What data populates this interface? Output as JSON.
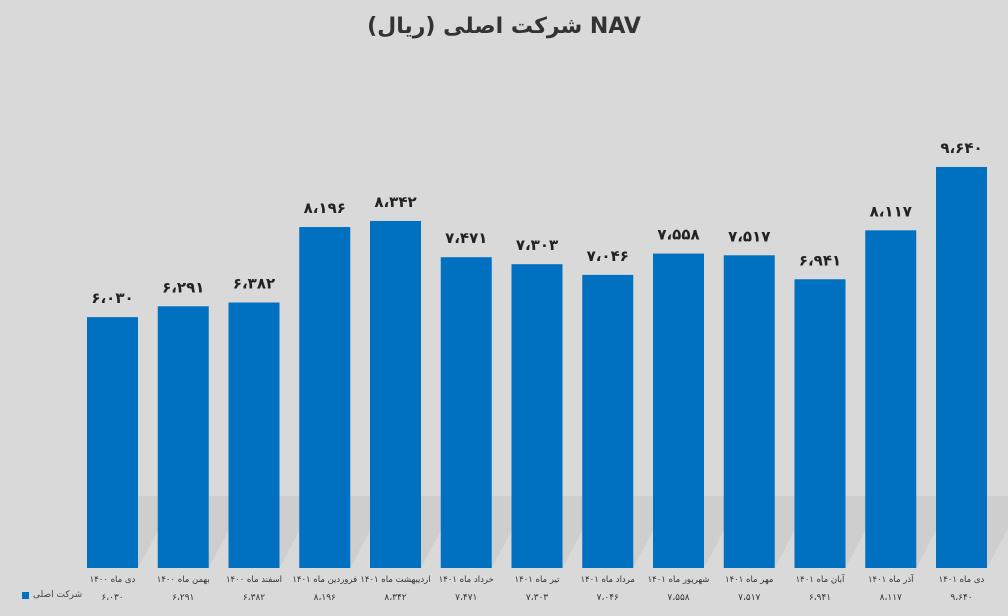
{
  "chart_data": {
    "type": "bar",
    "title": "NAV شرکت اصلی (ریال)",
    "categories": [
      "دی ماه ۱۴۰۰",
      "بهمن ماه ۱۴۰۰",
      "اسفند ماه ۱۴۰۰",
      "فروردین ماه ۱۴۰۱",
      "اردیبهشت ماه ۱۴۰۱",
      "خرداد ماه ۱۴۰۱",
      "تیر ماه ۱۴۰۱",
      "مرداد ماه ۱۴۰۱",
      "شهریور ماه ۱۴۰۱",
      "مهر ماه ۱۴۰۱",
      "آبان ماه ۱۴۰۱",
      "آذر ماه ۱۴۰۱",
      "دی ماه ۱۴۰۱"
    ],
    "series": [
      {
        "name": "شرکت اصلی",
        "values": [
          6030,
          6291,
          6382,
          8196,
          8342,
          7471,
          7303,
          7046,
          7558,
          7517,
          6941,
          8117,
          9640
        ],
        "labels": [
          "۶،۰۳۰",
          "۶،۲۹۱",
          "۶،۳۸۲",
          "۸،۱۹۶",
          "۸،۳۴۲",
          "۷،۴۷۱",
          "۷،۳۰۳",
          "۷،۰۴۶",
          "۷،۵۵۸",
          "۷،۵۱۷",
          "۶،۹۴۱",
          "۸،۱۱۷",
          "۹،۶۴۰"
        ],
        "table_values": [
          "۶،۰۳۰",
          "۶،۲۹۱",
          "۶،۳۸۲",
          "۸،۱۹۶",
          "۸،۳۴۲",
          "۷،۴۷۱",
          "۷،۳۰۳",
          "۷،۰۴۶",
          "۷،۵۵۸",
          "۷،۵۱۷",
          "۶،۹۴۱",
          "۸،۱۱۷",
          "۹،۶۴۰"
        ]
      }
    ],
    "ylim": [
      0,
      10000
    ],
    "grid": false,
    "legend": "bottom-left",
    "bar_color": "#0070c0",
    "background": "#d9d9d9"
  }
}
